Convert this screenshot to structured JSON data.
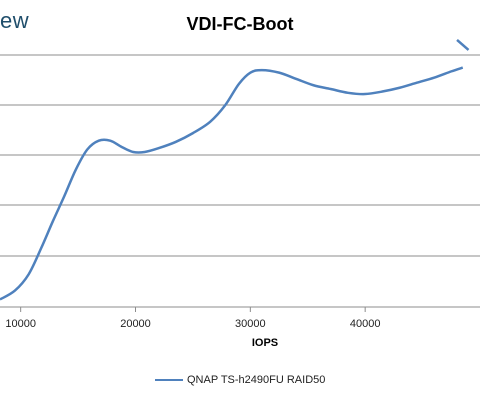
{
  "watermark": "ew",
  "chart_data": {
    "type": "line",
    "title": "VDI-FC-Boot",
    "xlabel": "IOPS",
    "ylabel": "",
    "x_ticks": [
      10000,
      20000,
      30000,
      40000
    ],
    "x_tick_labels": [
      "10000",
      "20000",
      "30000",
      "40000"
    ],
    "xlim": [
      8200,
      50000
    ],
    "grid": true,
    "legend_position": "bottom",
    "series": [
      {
        "name": "QNAP TS-h2490FU RAID50",
        "color": "#4f81bd",
        "points": [
          [
            8200,
            0.94
          ],
          [
            9500,
            0.87
          ],
          [
            10700,
            0.74
          ],
          [
            11800,
            0.53
          ],
          [
            12800,
            0.32
          ],
          [
            13800,
            0.12
          ],
          [
            14800,
            -0.09
          ],
          [
            15800,
            -0.25
          ],
          [
            16800,
            -0.32
          ],
          [
            17800,
            -0.32
          ],
          [
            18800,
            -0.27
          ],
          [
            19800,
            -0.23
          ],
          [
            20800,
            -0.23
          ],
          [
            22000,
            -0.26
          ],
          [
            23500,
            -0.31
          ],
          [
            25000,
            -0.38
          ],
          [
            26500,
            -0.47
          ],
          [
            27800,
            -0.6
          ],
          [
            29000,
            -0.77
          ],
          [
            30000,
            -0.86
          ],
          [
            31000,
            -0.88
          ],
          [
            32500,
            -0.86
          ],
          [
            34000,
            -0.81
          ],
          [
            35500,
            -0.76
          ],
          [
            37000,
            -0.73
          ],
          [
            38500,
            -0.7
          ],
          [
            40000,
            -0.69
          ],
          [
            41500,
            -0.71
          ],
          [
            43000,
            -0.74
          ],
          [
            44500,
            -0.78
          ],
          [
            46000,
            -0.82
          ],
          [
            47500,
            -0.87
          ],
          [
            48500,
            -0.9
          ]
        ]
      }
    ],
    "annotation_series": [
      {
        "color": "#4f81bd",
        "points": [
          [
            48000,
            -1.12
          ],
          [
            49000,
            -1.04
          ]
        ]
      }
    ]
  }
}
